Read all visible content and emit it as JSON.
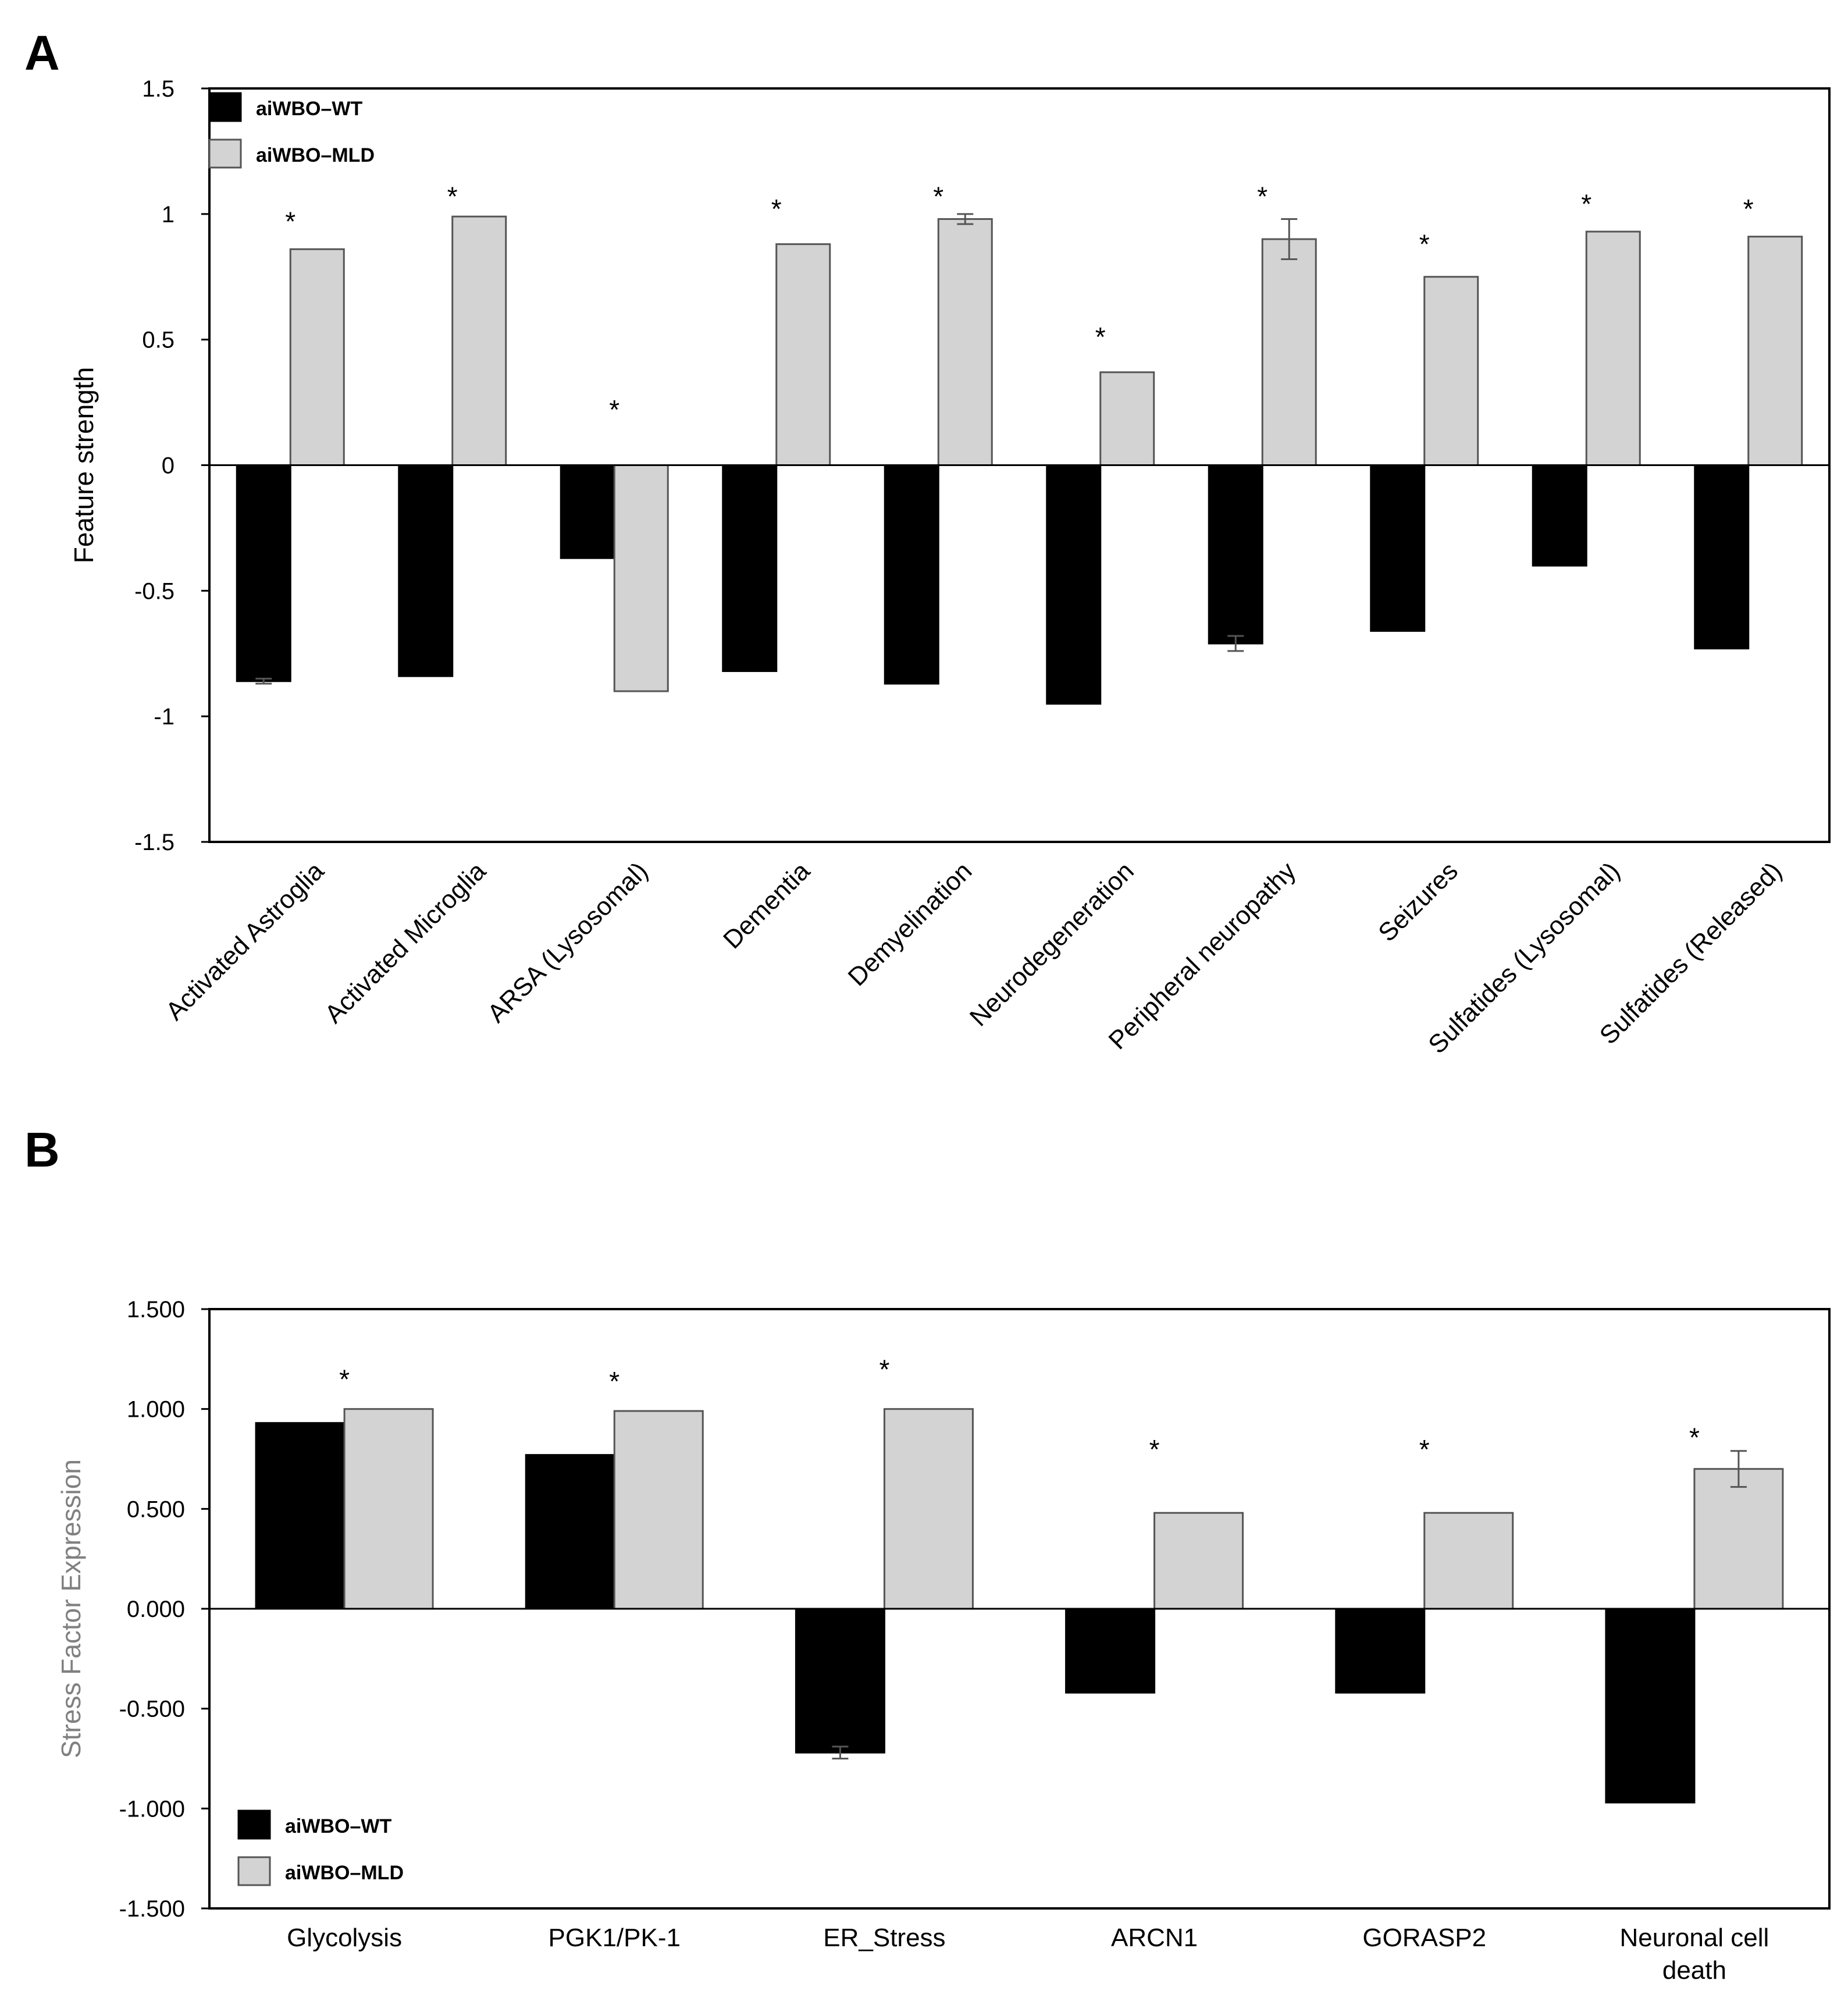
{
  "figure": {
    "panel_labels": [
      "A",
      "B"
    ]
  },
  "colors": {
    "wt": "#000000",
    "mld": "#d3d3d3",
    "axis": "#000000",
    "ylabel_b": "#808080"
  },
  "chart_data": [
    {
      "panel": "A",
      "type": "bar",
      "title": "",
      "xlabel": "",
      "ylabel": "Feature strength",
      "ylim": [
        -1.5,
        1.5
      ],
      "yticks": [
        -1.5,
        -1,
        -0.5,
        0,
        0.5,
        1,
        1.5
      ],
      "ytick_labels": [
        "-1.5",
        "-1",
        "-0.5",
        "0",
        "0.5",
        "1",
        "1.5"
      ],
      "grid": false,
      "legend_position": "top-left",
      "categories": [
        "Activated Astroglia",
        "Activated Microglia",
        "ARSA (Lysosomal)",
        "Dementia",
        "Demyelination",
        "Neurodegeneration",
        "Peripheral neuropathy",
        "Seizures",
        "Sulfatides (Lysosomal)",
        "Sulfatides (Released)"
      ],
      "series": [
        {
          "name": "aiWBO–WT",
          "values": [
            -0.86,
            -0.84,
            -0.37,
            -0.82,
            -0.87,
            -0.95,
            -0.71,
            -0.66,
            -0.4,
            -0.73
          ],
          "errors": [
            0.01,
            0.0,
            0.0,
            0.0,
            0.0,
            0.0,
            0.03,
            0.0,
            0.0,
            0.0
          ]
        },
        {
          "name": "aiWBO–MLD",
          "values": [
            0.86,
            0.99,
            -0.9,
            0.88,
            0.98,
            0.37,
            0.9,
            0.75,
            0.93,
            0.91
          ],
          "errors": [
            0.0,
            0.0,
            0.0,
            0.0,
            0.02,
            0.0,
            0.08,
            0.0,
            0.0,
            0.0
          ]
        }
      ],
      "annotations": [
        "*",
        "*",
        "*",
        "*",
        "*",
        "*",
        "*",
        "*",
        "*",
        "*"
      ],
      "annotation_values": [
        0.98,
        1.08,
        0.23,
        1.03,
        1.08,
        0.52,
        1.08,
        0.89,
        1.05,
        1.03
      ]
    },
    {
      "panel": "B",
      "type": "bar",
      "title": "",
      "xlabel": "",
      "ylabel": "Stress Factor Expression",
      "ylim": [
        -1.5,
        1.5
      ],
      "yticks": [
        -1.5,
        -1.0,
        -0.5,
        0.0,
        0.5,
        1.0,
        1.5
      ],
      "ytick_labels": [
        "-1.500",
        "-1.000",
        "-0.500",
        "0.000",
        "0.500",
        "1.000",
        "1.500"
      ],
      "grid": false,
      "legend_position": "bottom-left",
      "categories": [
        "Glycolysis",
        "PGK1/PK-1",
        "ER_Stress",
        "ARCN1",
        "GORASP2",
        "Neuronal cell death"
      ],
      "category_lines": [
        [
          "Glycolysis"
        ],
        [
          "PGK1/PK-1"
        ],
        [
          "ER_Stress"
        ],
        [
          "ARCN1"
        ],
        [
          "GORASP2"
        ],
        [
          "Neuronal cell",
          "death"
        ]
      ],
      "series": [
        {
          "name": "aiWBO–WT",
          "values": [
            0.93,
            0.77,
            -0.72,
            -0.42,
            -0.42,
            -0.97
          ],
          "errors": [
            0.0,
            0.0,
            0.03,
            0.0,
            0.0,
            0.0
          ]
        },
        {
          "name": "aiWBO–MLD",
          "values": [
            1.0,
            0.99,
            1.0,
            0.48,
            0.48,
            0.7
          ],
          "errors": [
            0.0,
            0.0,
            0.0,
            0.0,
            0.0,
            0.09
          ]
        }
      ],
      "annotations": [
        "*",
        "*",
        "*",
        "*",
        "*",
        "*"
      ],
      "annotation_values": [
        1.16,
        1.15,
        1.21,
        0.81,
        0.81,
        0.87
      ]
    }
  ]
}
